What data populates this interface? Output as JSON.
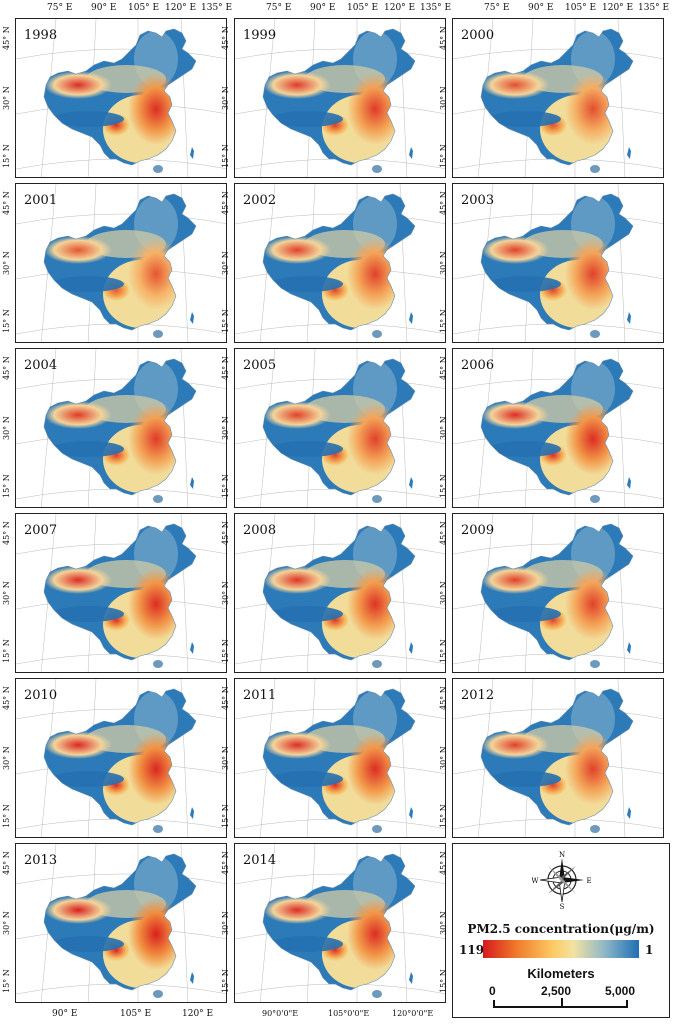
{
  "top_longitude_labels": [
    "75° E",
    "90° E",
    "105° E",
    "120° E",
    "135° E"
  ],
  "latitude_labels": [
    "45° N",
    "30° N",
    "15° N"
  ],
  "bottom_labels_left": [
    "90° E",
    "105° E",
    "120° E"
  ],
  "bottom_labels_mid": [
    "90°0'0\"E",
    "105°0'0\"E",
    "120°0'0\"E"
  ],
  "panels": [
    {
      "year": "1998",
      "intensity": 0.85
    },
    {
      "year": "1999",
      "intensity": 0.75
    },
    {
      "year": "2000",
      "intensity": 0.6
    },
    {
      "year": "2001",
      "intensity": 0.55
    },
    {
      "year": "2002",
      "intensity": 0.7
    },
    {
      "year": "2003",
      "intensity": 0.7
    },
    {
      "year": "2004",
      "intensity": 0.75
    },
    {
      "year": "2005",
      "intensity": 0.7
    },
    {
      "year": "2006",
      "intensity": 0.85
    },
    {
      "year": "2007",
      "intensity": 0.85
    },
    {
      "year": "2008",
      "intensity": 0.8
    },
    {
      "year": "2009",
      "intensity": 0.7
    },
    {
      "year": "2010",
      "intensity": 0.9
    },
    {
      "year": "2011",
      "intensity": 0.85
    },
    {
      "year": "2012",
      "intensity": 0.7
    },
    {
      "year": "2013",
      "intensity": 0.95
    },
    {
      "year": "2014",
      "intensity": 0.85
    }
  ],
  "legend": {
    "compass": {
      "n": "N",
      "s": "S",
      "e": "E",
      "w": "W"
    },
    "title": "PM2.5 concentration(μg/m)",
    "ramp_min": "119",
    "ramp_max": "1",
    "ramp_colors": [
      "#d7191c",
      "#f07c2c",
      "#fdcb63",
      "#f2e2a2",
      "#8fb7c7",
      "#1f6fb4"
    ],
    "scale_title": "Kilometers",
    "scale_ticks": [
      "0",
      "2,500",
      "5,000"
    ]
  }
}
